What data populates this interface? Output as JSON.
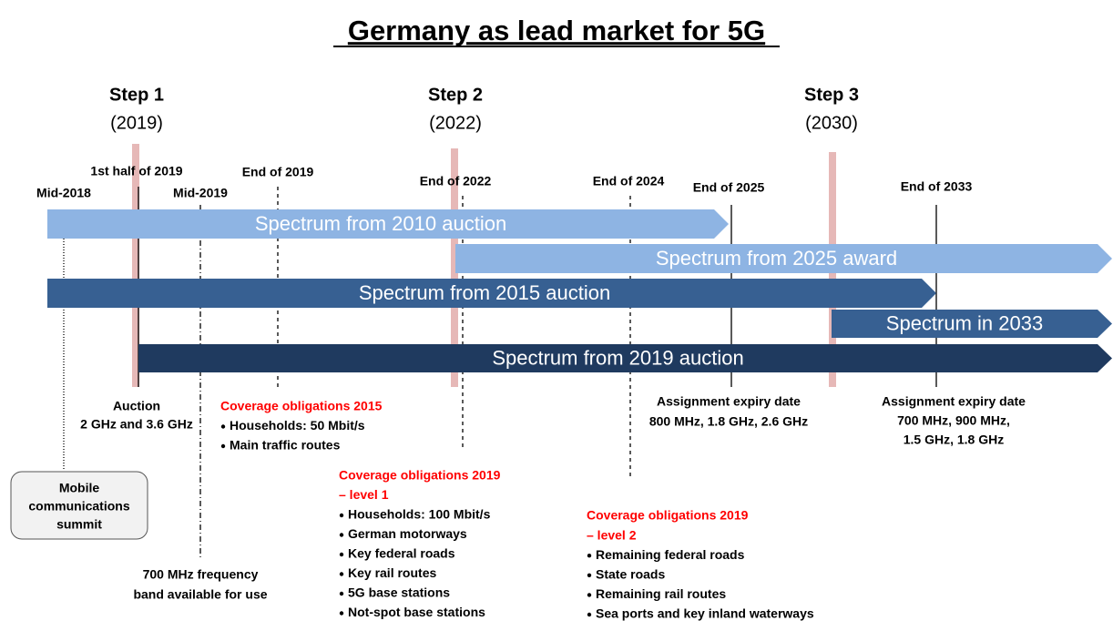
{
  "title": "Germany as lead market for 5G",
  "steps": [
    {
      "label": "Step 1",
      "year": "(2019)"
    },
    {
      "label": "Step 2",
      "year": "(2022)"
    },
    {
      "label": "Step 3",
      "year": "(2030)"
    }
  ],
  "dates": [
    "1st half of 2019",
    "Mid-2018",
    "Mid-2019",
    "End of 2019",
    "End of 2022",
    "End of 2024",
    "End of 2025",
    "End of 2033"
  ],
  "arrows": [
    "Spectrum from 2010 auction",
    "Spectrum from 2025 award",
    "Spectrum from 2015 auction",
    "Spectrum in 2033",
    "Spectrum from 2019 auction"
  ],
  "auction": [
    "Auction",
    "2 GHz and 3.6 GHz"
  ],
  "summit": [
    "Mobile",
    "communications",
    "summit"
  ],
  "band": [
    "700 MHz frequency",
    "band available for use"
  ],
  "expiry_2025": [
    "Assignment expiry date",
    "800 MHz, 1.8 GHz, 2.6 GHz"
  ],
  "expiry_2033": [
    "Assignment expiry date",
    "700 MHz, 900 MHz,",
    "1.5 GHz, 1.8 GHz"
  ],
  "coverage_2015": {
    "heading": [
      "Coverage obligations 2015"
    ],
    "items": [
      "Households: 50 Mbit/s",
      "Main traffic routes"
    ]
  },
  "coverage_2019_level1": {
    "heading": [
      "Coverage obligations 2019",
      "– level 1"
    ],
    "items": [
      "Households: 100 Mbit/s",
      "German motorways",
      "Key federal roads",
      "Key rail routes",
      "5G base stations",
      "Not-spot base stations"
    ]
  },
  "coverage_2019_level2": {
    "heading": [
      "Coverage obligations 2019",
      "– level 2"
    ],
    "items": [
      "Remaining federal roads",
      "State roads",
      "Remaining rail routes",
      "Sea ports and key inland waterways"
    ]
  }
}
